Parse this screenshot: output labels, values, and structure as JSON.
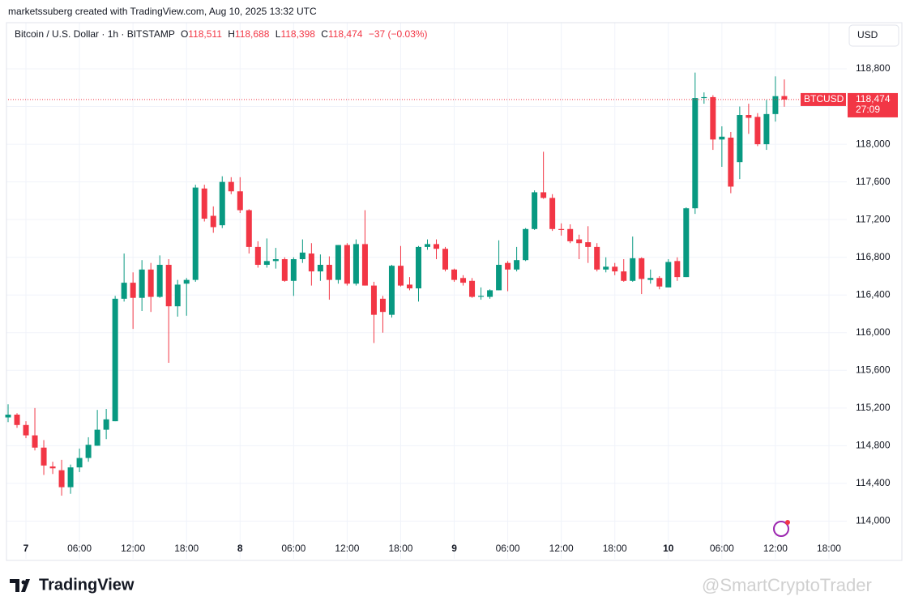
{
  "header": {
    "attribution": "marketssuberg created with TradingView.com, Aug 10, 2025 13:32 UTC"
  },
  "legend": {
    "symbol": "Bitcoin / U.S. Dollar · 1h · BITSTAMP",
    "open_key": "O",
    "open": "118,511",
    "high_key": "H",
    "high": "118,688",
    "low_key": "L",
    "low": "118,398",
    "close_key": "C",
    "close": "118,474",
    "change": "−37 (−0.03%)"
  },
  "currency": "USD",
  "price_label": {
    "symbol": "BTCUSD",
    "price": "118,474",
    "countdown": "27:09"
  },
  "footer": {
    "logo": "TradingView",
    "watermark": "@SmartCryptoTrader"
  },
  "chart_data": {
    "type": "candlestick",
    "up_color": "#089981",
    "down_color": "#f23645",
    "grid": true,
    "xlim": [
      0,
      94
    ],
    "ylim": [
      113600,
      119290
    ],
    "xticks": [
      {
        "value": 2,
        "label": "7"
      },
      {
        "value": 8,
        "label": "06:00"
      },
      {
        "value": 14,
        "label": "12:00"
      },
      {
        "value": 20,
        "label": "18:00"
      },
      {
        "value": 26,
        "label": "8"
      },
      {
        "value": 32,
        "label": "06:00"
      },
      {
        "value": 38,
        "label": "12:00"
      },
      {
        "value": 44,
        "label": "18:00"
      },
      {
        "value": 50,
        "label": "9"
      },
      {
        "value": 56,
        "label": "06:00"
      },
      {
        "value": 62,
        "label": "12:00"
      },
      {
        "value": 68,
        "label": "18:00"
      },
      {
        "value": 74,
        "label": "10"
      },
      {
        "value": 80,
        "label": "06:00"
      },
      {
        "value": 86,
        "label": "12:00"
      },
      {
        "value": 92,
        "label": "18:00"
      }
    ],
    "yticks": [
      {
        "value": 114000,
        "label": "114,000"
      },
      {
        "value": 114400,
        "label": "114,400"
      },
      {
        "value": 114800,
        "label": "114,800"
      },
      {
        "value": 115200,
        "label": "115,200"
      },
      {
        "value": 115600,
        "label": "115,600"
      },
      {
        "value": 116000,
        "label": "116,000"
      },
      {
        "value": 116400,
        "label": "116,400"
      },
      {
        "value": 116800,
        "label": "116,800"
      },
      {
        "value": 117200,
        "label": "117,200"
      },
      {
        "value": 117600,
        "label": "117,600"
      },
      {
        "value": 118000,
        "label": "118,000"
      },
      {
        "value": 118400,
        "label": "118,400"
      },
      {
        "value": 118800,
        "label": "118,800"
      }
    ],
    "open": [
      115100,
      115130,
      115020,
      114910,
      114780,
      114580,
      114540,
      114360,
      114570,
      114670,
      114800,
      114970,
      115060,
      116360,
      116530,
      116370,
      116670,
      116380,
      116720,
      116280,
      116520,
      116560,
      117530,
      117240,
      117140,
      117600,
      117500,
      117300,
      116910,
      116720,
      116760,
      116780,
      116550,
      116780,
      116840,
      116650,
      116720,
      116560,
      116930,
      116520,
      116940,
      116500,
      116360,
      116190,
      116710,
      116510,
      116470,
      116910,
      116940,
      116890,
      116670,
      116580,
      116550,
      116380,
      116380,
      116450,
      116740,
      116670,
      116770,
      117100,
      117490,
      117430,
      117100,
      117100,
      116990,
      116960,
      116910,
      116670,
      116700,
      116650,
      116550,
      116790,
      116560,
      116580,
      116480,
      116760,
      116590,
      117320,
      118490,
      118500,
      118050,
      118070,
      117810,
      118310,
      118290,
      118000,
      118320,
      118511
    ],
    "high": [
      115240,
      115145,
      115060,
      115200,
      114860,
      114630,
      114650,
      114600,
      114770,
      114890,
      115180,
      115190,
      116390,
      116840,
      116640,
      116770,
      116740,
      116820,
      116780,
      116560,
      116580,
      117570,
      117570,
      117340,
      117660,
      117650,
      117650,
      117310,
      116970,
      117000,
      116900,
      116800,
      116800,
      116990,
      116950,
      116830,
      116810,
      116930,
      116950,
      116990,
      117300,
      116540,
      116390,
      116720,
      116920,
      116590,
      116920,
      116990,
      116990,
      116910,
      116680,
      116610,
      116580,
      116480,
      116460,
      116980,
      116760,
      116910,
      117110,
      117510,
      117920,
      117470,
      117160,
      117150,
      117040,
      117130,
      116950,
      116800,
      116740,
      116780,
      117020,
      116800,
      116670,
      116600,
      116780,
      116800,
      117330,
      118760,
      118550,
      118520,
      118190,
      118130,
      118400,
      118430,
      118330,
      118470,
      118720,
      118688
    ],
    "low": [
      115050,
      114990,
      114880,
      114750,
      114490,
      114500,
      114270,
      114290,
      114520,
      114630,
      114800,
      114870,
      115060,
      116330,
      116040,
      116230,
      116220,
      116370,
      115680,
      116170,
      116180,
      116540,
      117180,
      117060,
      117110,
      117470,
      117270,
      116840,
      116690,
      116690,
      116680,
      116540,
      116390,
      116740,
      116500,
      116550,
      116350,
      116520,
      116500,
      116500,
      116500,
      115890,
      116000,
      116160,
      116490,
      116450,
      116330,
      116880,
      116780,
      116650,
      116540,
      116500,
      116370,
      116350,
      116360,
      116450,
      116440,
      116650,
      116760,
      117090,
      117420,
      117080,
      117030,
      116950,
      116780,
      116740,
      116650,
      116640,
      116610,
      116540,
      116540,
      116410,
      116520,
      116460,
      116480,
      116550,
      116590,
      117260,
      118430,
      117940,
      117760,
      117480,
      117630,
      118110,
      117980,
      117940,
      118240,
      118398
    ],
    "close": [
      115130,
      115020,
      114910,
      114780,
      114590,
      114560,
      114360,
      114570,
      114670,
      114810,
      114970,
      115080,
      116360,
      116530,
      116370,
      116670,
      116380,
      116720,
      116280,
      116510,
      116560,
      117540,
      117210,
      117120,
      117600,
      117500,
      117300,
      116910,
      116720,
      116760,
      116780,
      116550,
      116780,
      116850,
      116650,
      116720,
      116560,
      116930,
      116520,
      116940,
      116500,
      116190,
      116220,
      116710,
      116500,
      116470,
      116910,
      116940,
      116890,
      116670,
      116560,
      116530,
      116380,
      116390,
      116450,
      116720,
      116670,
      116770,
      117100,
      117490,
      117430,
      117100,
      117090,
      116970,
      116950,
      116910,
      116670,
      116700,
      116650,
      116550,
      116790,
      116570,
      116580,
      116490,
      116750,
      116590,
      117320,
      118490,
      118500,
      118050,
      118080,
      117550,
      118310,
      118280,
      118000,
      118320,
      118510,
      118474
    ]
  }
}
